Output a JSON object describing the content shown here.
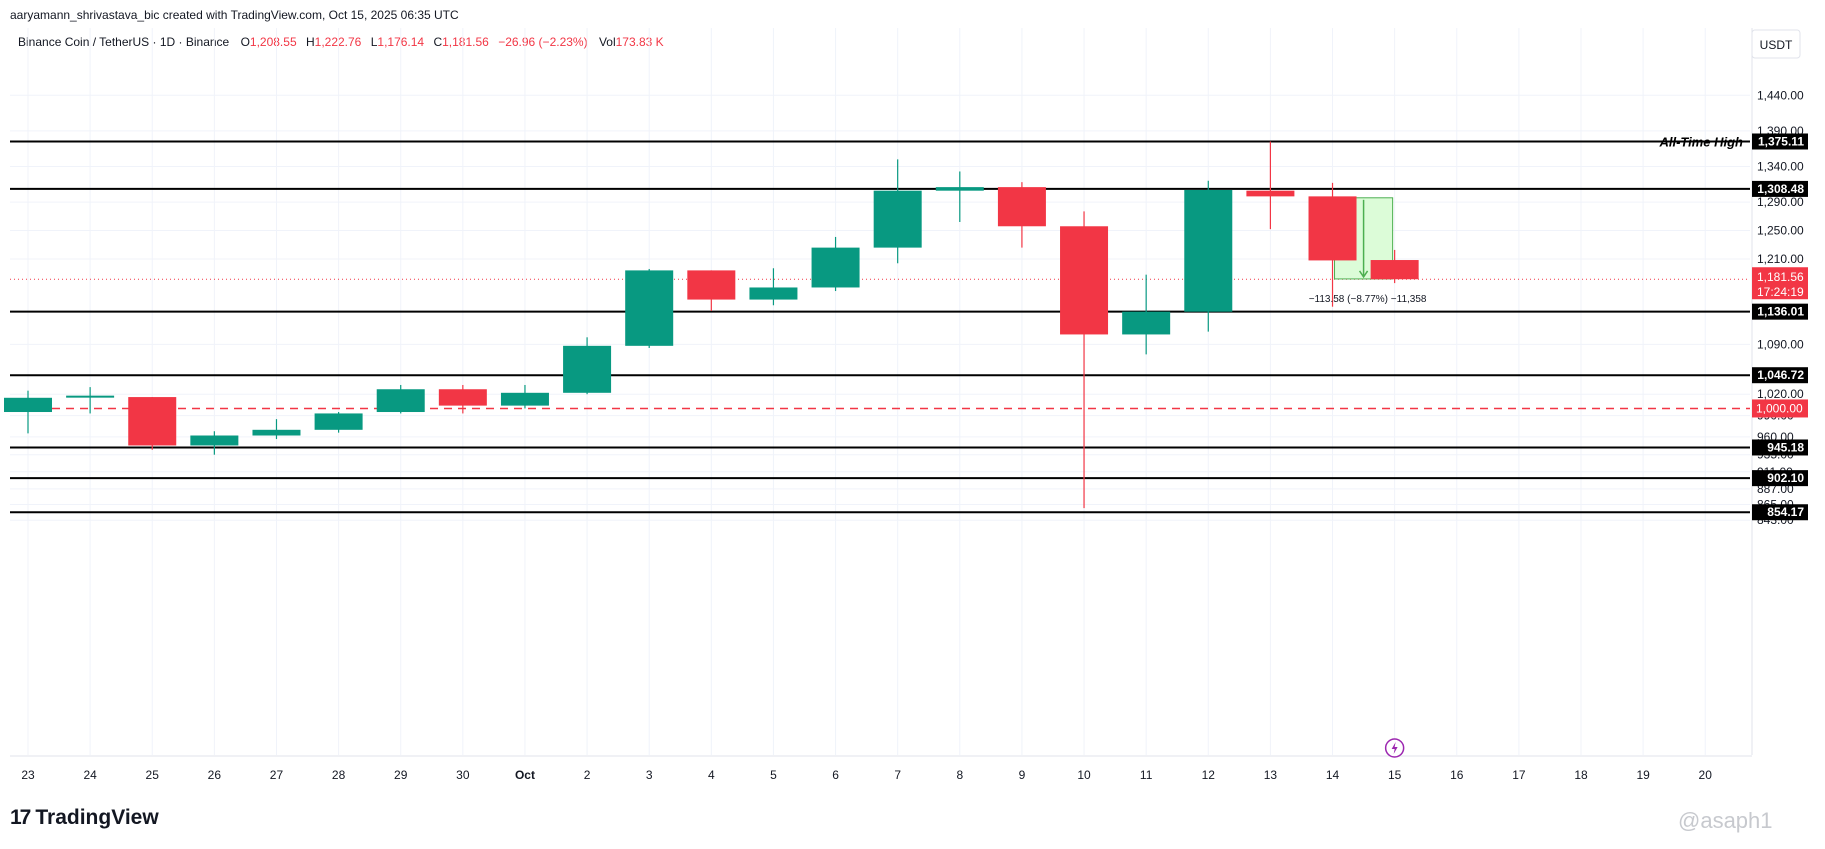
{
  "header": {
    "credit": "aaryamann_shrivastava_bic created with TradingView.com, Oct 15, 2025 06:35 UTC"
  },
  "legend": {
    "symbol": "Binance Coin / TetherUS · 1D · Binance",
    "o_label": "O",
    "o_value": "1,208.55",
    "h_label": "H",
    "h_value": "1,222.76",
    "l_label": "L",
    "l_value": "1,176.14",
    "c_label": "C",
    "c_value": "1,181.56",
    "change": "−26.96 (−2.23%)",
    "vol_label": "Vol",
    "vol_value": "173.83 K"
  },
  "brand": {
    "logo": "17",
    "name": "TradingView"
  },
  "watermark": "@asaph1",
  "colors": {
    "up": "#089981",
    "down": "#f23645",
    "level_line": "#000000",
    "dashed_line": "#f23645",
    "grid": "#f0f3fa",
    "measure_fill": "#dcfcd8",
    "measure_stroke": "#4caf50"
  },
  "chart_data": {
    "type": "candlestick",
    "currency": "USDT",
    "x_ticks": [
      "23",
      "24",
      "25",
      "26",
      "27",
      "28",
      "29",
      "30",
      "Oct",
      "2",
      "3",
      "4",
      "5",
      "6",
      "7",
      "8",
      "9",
      "10",
      "11",
      "12",
      "13",
      "14",
      "15",
      "16",
      "17",
      "18",
      "19",
      "20"
    ],
    "y_ticks": [
      "1,440.00",
      "1,390.00",
      "1,340.00",
      "1,290.00",
      "1,250.00",
      "1,210.00",
      "1,090.00",
      "1,020.00",
      "990.00",
      "960.00",
      "935.00",
      "911.00",
      "887.00",
      "865.00",
      "843.00"
    ],
    "candles": [
      {
        "x": "23",
        "o": 995,
        "h": 1025,
        "l": 965,
        "c": 1015
      },
      {
        "x": "24",
        "o": 1016,
        "h": 1030,
        "l": 993,
        "c": 1018
      },
      {
        "x": "25",
        "o": 1016,
        "h": 1016,
        "l": 942,
        "c": 948
      },
      {
        "x": "26",
        "o": 948,
        "h": 968,
        "l": 935,
        "c": 962
      },
      {
        "x": "27",
        "o": 962,
        "h": 985,
        "l": 957,
        "c": 970
      },
      {
        "x": "28",
        "o": 970,
        "h": 995,
        "l": 966,
        "c": 993
      },
      {
        "x": "29",
        "o": 995,
        "h": 1033,
        "l": 993,
        "c": 1027
      },
      {
        "x": "30",
        "o": 1027,
        "h": 1033,
        "l": 993,
        "c": 1004
      },
      {
        "x": "Oct",
        "o": 1004,
        "h": 1033,
        "l": 1000,
        "c": 1022
      },
      {
        "x": "2",
        "o": 1022,
        "h": 1100,
        "l": 1020,
        "c": 1088
      },
      {
        "x": "3",
        "o": 1088,
        "h": 1196,
        "l": 1085,
        "c": 1194
      },
      {
        "x": "4",
        "o": 1194,
        "h": 1194,
        "l": 1137,
        "c": 1153
      },
      {
        "x": "5",
        "o": 1153,
        "h": 1197,
        "l": 1145,
        "c": 1170
      },
      {
        "x": "6",
        "o": 1170,
        "h": 1241,
        "l": 1165,
        "c": 1226
      },
      {
        "x": "7",
        "o": 1226,
        "h": 1350,
        "l": 1204,
        "c": 1306
      },
      {
        "x": "8",
        "o": 1306,
        "h": 1333,
        "l": 1262,
        "c": 1311
      },
      {
        "x": "9",
        "o": 1311,
        "h": 1318,
        "l": 1226,
        "c": 1256
      },
      {
        "x": "10",
        "o": 1256,
        "h": 1277,
        "l": 860,
        "c": 1104
      },
      {
        "x": "11",
        "o": 1104,
        "h": 1188,
        "l": 1076,
        "c": 1136
      },
      {
        "x": "12",
        "o": 1136,
        "h": 1320,
        "l": 1108,
        "c": 1307
      },
      {
        "x": "13",
        "o": 1306,
        "h": 1375.11,
        "l": 1252,
        "c": 1298
      },
      {
        "x": "14",
        "o": 1298,
        "h": 1317,
        "l": 1143,
        "c": 1208
      },
      {
        "x": "15",
        "o": 1208.55,
        "h": 1222.76,
        "l": 1176.14,
        "c": 1181.56
      }
    ],
    "levels": [
      {
        "value": 1375.11,
        "label": "1,375.11",
        "annotation": "All-Time High"
      },
      {
        "value": 1308.48,
        "label": "1,308.48"
      },
      {
        "value": 1136.01,
        "label": "1,136.01"
      },
      {
        "value": 1046.72,
        "label": "1,046.72"
      },
      {
        "value": 945.18,
        "label": "945.18"
      },
      {
        "value": 902.1,
        "label": "902.10"
      },
      {
        "value": 854.17,
        "label": "854.17"
      }
    ],
    "dashed_level": {
      "value": 1000.0,
      "label": "1,000.00"
    },
    "last_price": {
      "value": 1181.56,
      "label": "1,181.56",
      "countdown": "17:24:19"
    },
    "measure": {
      "from_x": "14",
      "to_x": "15",
      "from": 1296,
      "to": 1182,
      "label": "−113.58 (−8.77%) −11,358"
    }
  }
}
